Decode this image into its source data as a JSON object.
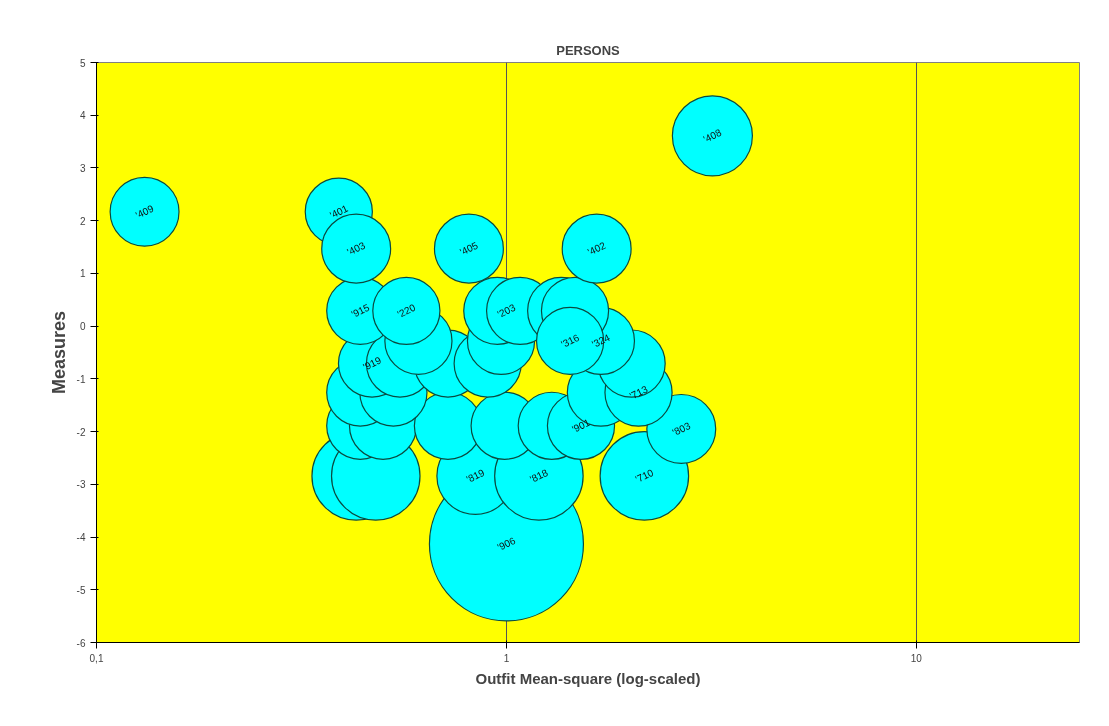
{
  "chart_data": {
    "type": "bubble",
    "title": "PERSONS",
    "xlabel": "Outfit Mean-square (log-scaled)",
    "ylabel": "Measures",
    "log": "x",
    "grid": "x",
    "xlim": [
      0.1,
      25
    ],
    "xticks": [
      {
        "value": 0.1,
        "label": "0,1"
      },
      1,
      10
    ],
    "ylim": [
      -6,
      5
    ],
    "yticks": [
      -6,
      -5,
      -4,
      -3,
      -2,
      -1,
      0,
      1,
      2,
      3,
      4,
      5
    ],
    "series": [
      {
        "color": "#00ffff",
        "x": [
          1.0,
          0.43,
          0.48,
          0.84,
          1.2,
          2.17,
          2.67,
          0.44,
          0.5,
          0.72,
          0.99,
          1.29,
          1.52,
          0.44,
          0.53,
          1.7,
          2.1,
          0.47,
          0.55,
          0.72,
          0.9,
          2.02,
          0.61,
          0.97,
          1.7,
          0.44,
          0.57,
          0.95,
          1.08,
          1.36,
          1.47,
          0.131,
          0.39,
          0.43,
          0.81,
          1.66,
          3.18,
          1.43
        ],
        "values": [
          -4.13,
          -2.84,
          -2.84,
          -2.84,
          -2.84,
          -2.84,
          -1.95,
          -1.89,
          -1.89,
          -1.89,
          -1.89,
          -1.89,
          -1.89,
          -1.26,
          -1.26,
          -1.26,
          -1.26,
          -0.71,
          -0.71,
          -0.71,
          -0.71,
          -0.71,
          -0.28,
          -0.28,
          -0.28,
          0.29,
          0.29,
          0.29,
          0.29,
          0.29,
          0.29,
          2.17,
          2.17,
          1.47,
          1.47,
          1.47,
          3.61,
          -0.28
        ],
        "sizes": [
          1,
          0.33,
          0.33,
          0.25,
          0.33,
          0.33,
          0.2,
          0.19,
          0.19,
          0.19,
          0.19,
          0.19,
          0.19,
          0.19,
          0.19,
          0.19,
          0.19,
          0.19,
          0.19,
          0.19,
          0.19,
          0.19,
          0.19,
          0.19,
          0.19,
          0.19,
          0.19,
          0.19,
          0.19,
          0.19,
          0.19,
          0.2,
          0.19,
          0.2,
          0.2,
          0.2,
          0.27,
          0.19
        ]
      }
    ],
    "annotations": [
      {
        "text": "'906",
        "x": 1.0,
        "y": -4.13
      },
      {
        "text": "'409",
        "x": 0.131,
        "y": 2.17
      },
      {
        "text": "'401",
        "x": 0.39,
        "y": 2.17
      },
      {
        "text": "'403",
        "x": 0.43,
        "y": 1.47
      },
      {
        "text": "'405",
        "x": 0.81,
        "y": 1.47
      },
      {
        "text": "'402",
        "x": 1.66,
        "y": 1.47
      },
      {
        "text": "'408",
        "x": 3.18,
        "y": 3.61
      },
      {
        "text": "'915",
        "x": 0.44,
        "y": 0.29
      },
      {
        "text": "'220",
        "x": 0.57,
        "y": 0.29
      },
      {
        "text": "'203",
        "x": 1.0,
        "y": 0.29
      },
      {
        "text": "'316",
        "x": 1.43,
        "y": -0.28
      },
      {
        "text": "'324",
        "x": 1.7,
        "y": -0.28
      },
      {
        "text": "'919",
        "x": 0.47,
        "y": -0.71
      },
      {
        "text": "'713",
        "x": 2.1,
        "y": -1.26
      },
      {
        "text": "'901",
        "x": 1.52,
        "y": -1.89
      },
      {
        "text": "'803",
        "x": 2.67,
        "y": -1.95
      },
      {
        "text": "'819",
        "x": 0.84,
        "y": -2.84
      },
      {
        "text": "'818",
        "x": 1.2,
        "y": -2.84
      },
      {
        "text": "'710",
        "x": 2.17,
        "y": -2.84
      }
    ]
  }
}
